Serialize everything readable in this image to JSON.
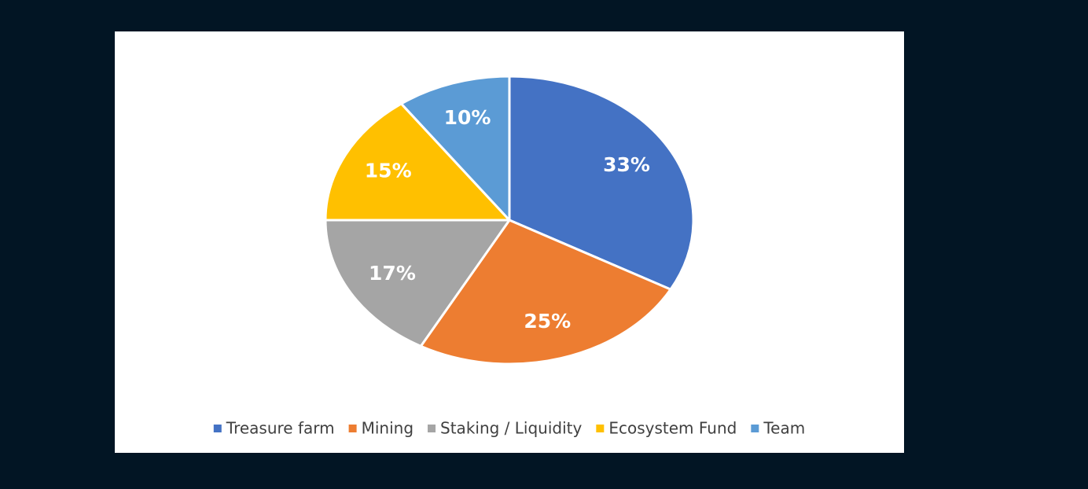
{
  "chart_data": {
    "type": "pie",
    "categories": [
      "Treasure farm",
      "Mining",
      "Staking / Liquidity",
      "Ecosystem Fund",
      "Team"
    ],
    "values": [
      33,
      25,
      17,
      15,
      10
    ],
    "value_labels": [
      "33%",
      "25%",
      "17%",
      "15%",
      "10%"
    ],
    "colors": [
      "#4472c4",
      "#ed7d31",
      "#a5a5a5",
      "#ffc000",
      "#5b9bd5"
    ],
    "legend": "bottom"
  }
}
